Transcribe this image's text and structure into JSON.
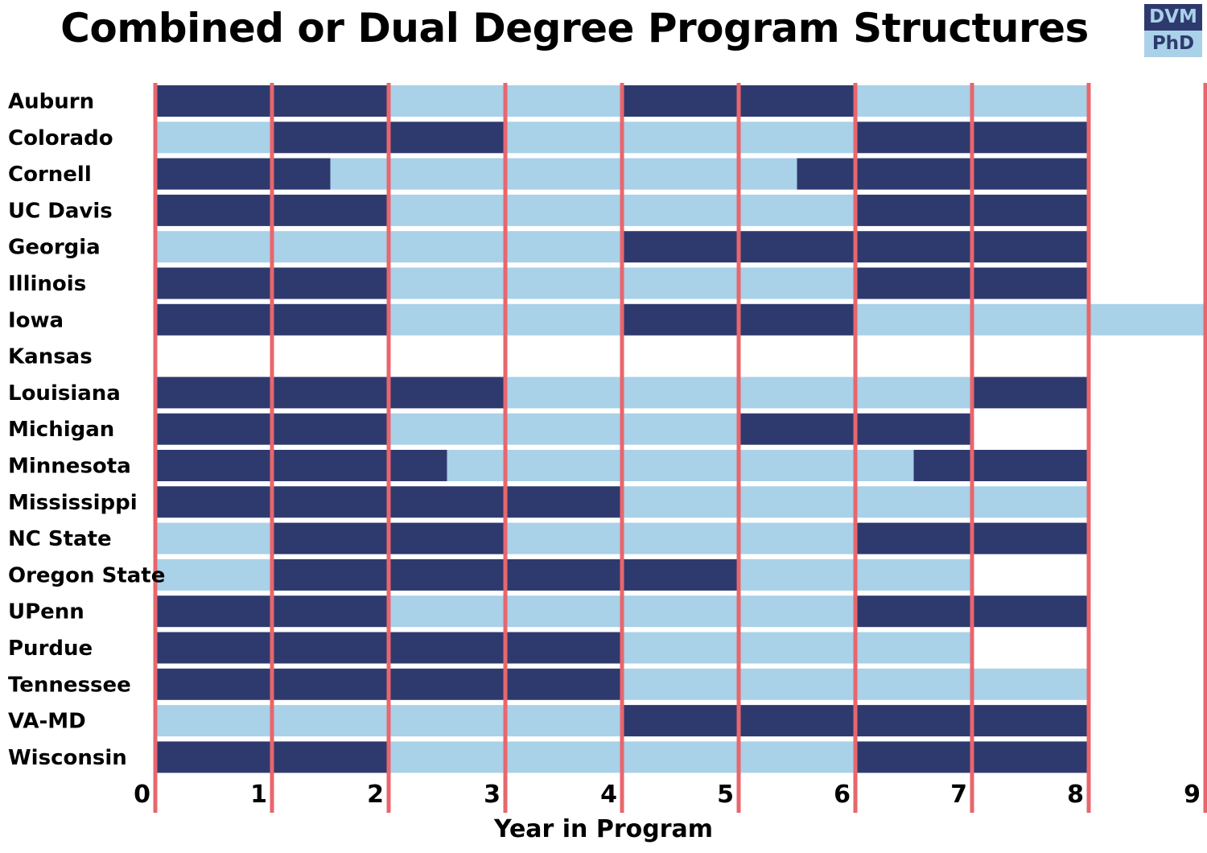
{
  "title": "Combined or Dual Degree Program Structures",
  "legend": [
    {
      "label": "DVM",
      "color": "#2e3a6e",
      "text_color": "#a9d1e8"
    },
    {
      "label": "PhD",
      "color": "#a9d1e8",
      "text_color": "#2e3a6e"
    }
  ],
  "colors": {
    "DVM": "#2e3a6e",
    "PhD": "#a9d1e8",
    "gridline": "#e8666d"
  },
  "chart_data": {
    "type": "bar",
    "orientation": "horizontal-stacked-timeline",
    "title": "Combined or Dual Degree Program Structures",
    "xlabel": "Year in Program",
    "ylabel": "",
    "xlim": [
      0,
      9
    ],
    "xticks": [
      0,
      1,
      2,
      3,
      4,
      5,
      6,
      7,
      8,
      9
    ],
    "grid": "vertical",
    "legend_position": "top-right",
    "programs": [
      {
        "name": "Auburn",
        "segments": [
          {
            "start": 0,
            "end": 2,
            "type": "DVM"
          },
          {
            "start": 2,
            "end": 4,
            "type": "PhD"
          },
          {
            "start": 4,
            "end": 6,
            "type": "DVM"
          },
          {
            "start": 6,
            "end": 8,
            "type": "PhD"
          }
        ]
      },
      {
        "name": "Colorado",
        "segments": [
          {
            "start": 0,
            "end": 1,
            "type": "PhD"
          },
          {
            "start": 1,
            "end": 3,
            "type": "DVM"
          },
          {
            "start": 3,
            "end": 6,
            "type": "PhD"
          },
          {
            "start": 6,
            "end": 8,
            "type": "DVM"
          }
        ]
      },
      {
        "name": "Cornell",
        "segments": [
          {
            "start": 0,
            "end": 1.5,
            "type": "DVM"
          },
          {
            "start": 1.5,
            "end": 5.5,
            "type": "PhD"
          },
          {
            "start": 5.5,
            "end": 8,
            "type": "DVM"
          }
        ]
      },
      {
        "name": "UC Davis",
        "segments": [
          {
            "start": 0,
            "end": 2,
            "type": "DVM"
          },
          {
            "start": 2,
            "end": 6,
            "type": "PhD"
          },
          {
            "start": 6,
            "end": 8,
            "type": "DVM"
          }
        ]
      },
      {
        "name": "Georgia",
        "segments": [
          {
            "start": 0,
            "end": 4,
            "type": "PhD"
          },
          {
            "start": 4,
            "end": 8,
            "type": "DVM"
          }
        ]
      },
      {
        "name": "Illinois",
        "segments": [
          {
            "start": 0,
            "end": 2,
            "type": "DVM"
          },
          {
            "start": 2,
            "end": 6,
            "type": "PhD"
          },
          {
            "start": 6,
            "end": 8,
            "type": "DVM"
          }
        ]
      },
      {
        "name": "Iowa",
        "segments": [
          {
            "start": 0,
            "end": 2,
            "type": "DVM"
          },
          {
            "start": 2,
            "end": 4,
            "type": "PhD"
          },
          {
            "start": 4,
            "end": 6,
            "type": "DVM"
          },
          {
            "start": 6,
            "end": 9,
            "type": "PhD"
          }
        ]
      },
      {
        "name": "Kansas",
        "segments": []
      },
      {
        "name": "Louisiana",
        "segments": [
          {
            "start": 0,
            "end": 3,
            "type": "DVM"
          },
          {
            "start": 3,
            "end": 7,
            "type": "PhD"
          },
          {
            "start": 7,
            "end": 8,
            "type": "DVM"
          }
        ]
      },
      {
        "name": "Michigan",
        "segments": [
          {
            "start": 0,
            "end": 2,
            "type": "DVM"
          },
          {
            "start": 2,
            "end": 5,
            "type": "PhD"
          },
          {
            "start": 5,
            "end": 7,
            "type": "DVM"
          }
        ]
      },
      {
        "name": "Minnesota",
        "segments": [
          {
            "start": 0,
            "end": 2.5,
            "type": "DVM"
          },
          {
            "start": 2.5,
            "end": 6.5,
            "type": "PhD"
          },
          {
            "start": 6.5,
            "end": 8,
            "type": "DVM"
          }
        ]
      },
      {
        "name": "Mississippi",
        "segments": [
          {
            "start": 0,
            "end": 4,
            "type": "DVM"
          },
          {
            "start": 4,
            "end": 8,
            "type": "PhD"
          }
        ]
      },
      {
        "name": "NC State",
        "segments": [
          {
            "start": 0,
            "end": 1,
            "type": "PhD"
          },
          {
            "start": 1,
            "end": 3,
            "type": "DVM"
          },
          {
            "start": 3,
            "end": 6,
            "type": "PhD"
          },
          {
            "start": 6,
            "end": 8,
            "type": "DVM"
          }
        ]
      },
      {
        "name": "Oregon State",
        "segments": [
          {
            "start": 0,
            "end": 1,
            "type": "PhD"
          },
          {
            "start": 1,
            "end": 5,
            "type": "DVM"
          },
          {
            "start": 5,
            "end": 7,
            "type": "PhD"
          }
        ]
      },
      {
        "name": "UPenn",
        "segments": [
          {
            "start": 0,
            "end": 2,
            "type": "DVM"
          },
          {
            "start": 2,
            "end": 6,
            "type": "PhD"
          },
          {
            "start": 6,
            "end": 8,
            "type": "DVM"
          }
        ]
      },
      {
        "name": "Purdue",
        "segments": [
          {
            "start": 0,
            "end": 4,
            "type": "DVM"
          },
          {
            "start": 4,
            "end": 7,
            "type": "PhD"
          }
        ]
      },
      {
        "name": "Tennessee",
        "segments": [
          {
            "start": 0,
            "end": 4,
            "type": "DVM"
          },
          {
            "start": 4,
            "end": 8,
            "type": "PhD"
          }
        ]
      },
      {
        "name": "VA-MD",
        "segments": [
          {
            "start": 0,
            "end": 4,
            "type": "PhD"
          },
          {
            "start": 4,
            "end": 8,
            "type": "DVM"
          }
        ]
      },
      {
        "name": "Wisconsin",
        "segments": [
          {
            "start": 0,
            "end": 2,
            "type": "DVM"
          },
          {
            "start": 2,
            "end": 6,
            "type": "PhD"
          },
          {
            "start": 6,
            "end": 8,
            "type": "DVM"
          }
        ]
      }
    ]
  }
}
